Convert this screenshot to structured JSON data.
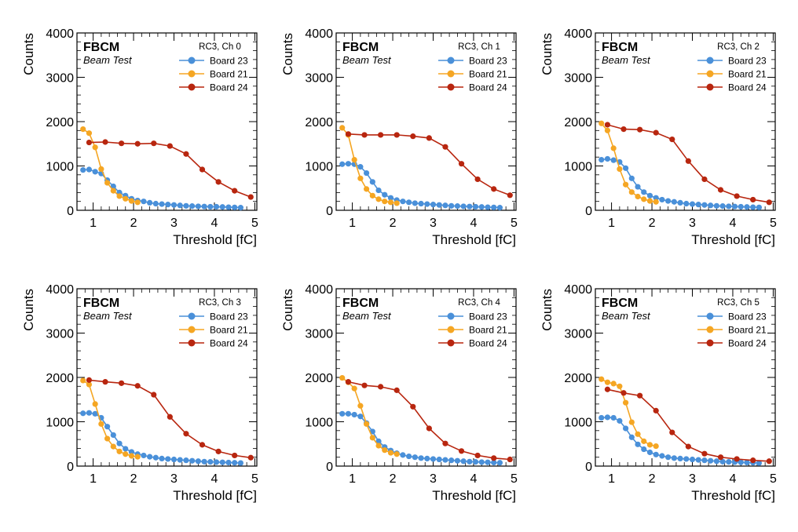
{
  "figure": {
    "brand": "FBCM",
    "subtitle": "Beam Test"
  },
  "colors": {
    "Board 23": "#4a90d9",
    "Board 21": "#f5a623",
    "Board 24": "#b8260f"
  },
  "chart_data": [
    {
      "type": "line",
      "channel_label": "RC3, Ch 0",
      "xlabel": "Threshold [fC]",
      "ylabel": "Counts",
      "xlim": [
        0.6,
        5.05
      ],
      "ylim": [
        0,
        4000
      ],
      "xticks": [
        1,
        2,
        3,
        4,
        5
      ],
      "yticks": [
        0,
        1000,
        2000,
        3000,
        4000
      ],
      "legend_position": "top-right",
      "series": [
        {
          "name": "Board 23",
          "x": [
            0.75,
            0.9,
            1.05,
            1.2,
            1.35,
            1.5,
            1.65,
            1.8,
            1.95,
            2.1,
            2.25,
            2.4,
            2.55,
            2.7,
            2.85,
            3.0,
            3.15,
            3.3,
            3.45,
            3.6,
            3.75,
            3.9,
            4.05,
            4.2,
            4.35,
            4.5,
            4.65
          ],
          "y": [
            910,
            920,
            870,
            830,
            680,
            540,
            400,
            330,
            260,
            220,
            200,
            170,
            150,
            140,
            130,
            120,
            110,
            100,
            95,
            90,
            85,
            80,
            80,
            75,
            70,
            65,
            60
          ]
        },
        {
          "name": "Board 21",
          "x": [
            0.75,
            0.9,
            1.05,
            1.2,
            1.35,
            1.5,
            1.65,
            1.8,
            1.95,
            2.1
          ],
          "y": [
            1830,
            1740,
            1420,
            930,
            620,
            440,
            320,
            260,
            210,
            180
          ]
        },
        {
          "name": "Board 24",
          "x": [
            0.9,
            1.3,
            1.7,
            2.1,
            2.5,
            2.9,
            3.3,
            3.7,
            4.1,
            4.5,
            4.9
          ],
          "y": [
            1530,
            1540,
            1510,
            1500,
            1510,
            1450,
            1270,
            920,
            640,
            440,
            300
          ]
        }
      ]
    },
    {
      "type": "line",
      "channel_label": "RC3, Ch 1",
      "xlabel": "Threshold [fC]",
      "ylabel": "Counts",
      "xlim": [
        0.6,
        5.05
      ],
      "ylim": [
        0,
        4000
      ],
      "xticks": [
        1,
        2,
        3,
        4,
        5
      ],
      "yticks": [
        0,
        1000,
        2000,
        3000,
        4000
      ],
      "legend_position": "top-right",
      "series": [
        {
          "name": "Board 23",
          "x": [
            0.75,
            0.9,
            1.05,
            1.2,
            1.35,
            1.5,
            1.65,
            1.8,
            1.95,
            2.1,
            2.25,
            2.4,
            2.55,
            2.7,
            2.85,
            3.0,
            3.15,
            3.3,
            3.45,
            3.6,
            3.75,
            3.9,
            4.05,
            4.2,
            4.35,
            4.5,
            4.65
          ],
          "y": [
            1040,
            1050,
            1040,
            980,
            840,
            640,
            450,
            350,
            280,
            230,
            200,
            180,
            160,
            150,
            140,
            130,
            120,
            110,
            100,
            95,
            90,
            85,
            80,
            75,
            70,
            65,
            60
          ]
        },
        {
          "name": "Board 21",
          "x": [
            0.75,
            0.9,
            1.05,
            1.2,
            1.35,
            1.5,
            1.65,
            1.8,
            1.95,
            2.1
          ],
          "y": [
            1860,
            1700,
            1140,
            720,
            480,
            330,
            250,
            200,
            180,
            160
          ]
        },
        {
          "name": "Board 24",
          "x": [
            0.9,
            1.3,
            1.7,
            2.1,
            2.5,
            2.9,
            3.3,
            3.7,
            4.1,
            4.5,
            4.9
          ],
          "y": [
            1720,
            1700,
            1700,
            1700,
            1670,
            1630,
            1430,
            1050,
            700,
            480,
            340
          ]
        }
      ]
    },
    {
      "type": "line",
      "channel_label": "RC3, Ch 2",
      "xlabel": "Threshold [fC]",
      "ylabel": "Counts",
      "xlim": [
        0.6,
        5.05
      ],
      "ylim": [
        0,
        4000
      ],
      "xticks": [
        1,
        2,
        3,
        4,
        5
      ],
      "yticks": [
        0,
        1000,
        2000,
        3000,
        4000
      ],
      "legend_position": "top-right",
      "series": [
        {
          "name": "Board 23",
          "x": [
            0.75,
            0.9,
            1.05,
            1.2,
            1.35,
            1.5,
            1.65,
            1.8,
            1.95,
            2.1,
            2.25,
            2.4,
            2.55,
            2.7,
            2.85,
            3.0,
            3.15,
            3.3,
            3.45,
            3.6,
            3.75,
            3.9,
            4.05,
            4.2,
            4.35,
            4.5,
            4.65
          ],
          "y": [
            1140,
            1160,
            1130,
            1090,
            950,
            720,
            530,
            410,
            330,
            280,
            240,
            210,
            190,
            170,
            150,
            140,
            130,
            120,
            110,
            100,
            95,
            90,
            85,
            80,
            75,
            70,
            65
          ]
        },
        {
          "name": "Board 21",
          "x": [
            0.75,
            0.9,
            1.05,
            1.2,
            1.35,
            1.5,
            1.65,
            1.8,
            1.95,
            2.1
          ],
          "y": [
            1960,
            1800,
            1400,
            930,
            580,
            410,
            310,
            250,
            210,
            190
          ]
        },
        {
          "name": "Board 24",
          "x": [
            0.9,
            1.3,
            1.7,
            2.1,
            2.5,
            2.9,
            3.3,
            3.7,
            4.1,
            4.5,
            4.9
          ],
          "y": [
            1930,
            1830,
            1820,
            1750,
            1600,
            1110,
            700,
            460,
            320,
            240,
            180
          ]
        }
      ]
    },
    {
      "type": "line",
      "channel_label": "RC3, Ch 3",
      "xlabel": "Threshold [fC]",
      "ylabel": "Counts",
      "xlim": [
        0.6,
        5.05
      ],
      "ylim": [
        0,
        4000
      ],
      "xticks": [
        1,
        2,
        3,
        4,
        5
      ],
      "yticks": [
        0,
        1000,
        2000,
        3000,
        4000
      ],
      "legend_position": "top-right",
      "series": [
        {
          "name": "Board 23",
          "x": [
            0.75,
            0.9,
            1.05,
            1.2,
            1.35,
            1.5,
            1.65,
            1.8,
            1.95,
            2.1,
            2.25,
            2.4,
            2.55,
            2.7,
            2.85,
            3.0,
            3.15,
            3.3,
            3.45,
            3.6,
            3.75,
            3.9,
            4.05,
            4.2,
            4.35,
            4.5,
            4.65
          ],
          "y": [
            1190,
            1200,
            1180,
            1090,
            890,
            700,
            510,
            390,
            320,
            270,
            240,
            210,
            190,
            170,
            160,
            150,
            140,
            130,
            120,
            110,
            100,
            95,
            90,
            85,
            80,
            75,
            70
          ]
        },
        {
          "name": "Board 21",
          "x": [
            0.75,
            0.9,
            1.05,
            1.2,
            1.35,
            1.5,
            1.65,
            1.8,
            1.95,
            2.1
          ],
          "y": [
            1930,
            1840,
            1400,
            950,
            620,
            440,
            330,
            270,
            230,
            210
          ]
        },
        {
          "name": "Board 24",
          "x": [
            0.9,
            1.3,
            1.7,
            2.1,
            2.5,
            2.9,
            3.3,
            3.7,
            4.1,
            4.5,
            4.9
          ],
          "y": [
            1940,
            1900,
            1870,
            1810,
            1610,
            1110,
            730,
            480,
            330,
            240,
            190
          ]
        }
      ]
    },
    {
      "type": "line",
      "channel_label": "RC3, Ch 4",
      "xlabel": "Threshold [fC]",
      "ylabel": "Counts",
      "xlim": [
        0.6,
        5.05
      ],
      "ylim": [
        0,
        4000
      ],
      "xticks": [
        1,
        2,
        3,
        4,
        5
      ],
      "yticks": [
        0,
        1000,
        2000,
        3000,
        4000
      ],
      "legend_position": "top-right",
      "series": [
        {
          "name": "Board 23",
          "x": [
            0.75,
            0.9,
            1.05,
            1.2,
            1.35,
            1.5,
            1.65,
            1.8,
            1.95,
            2.1,
            2.25,
            2.4,
            2.55,
            2.7,
            2.85,
            3.0,
            3.15,
            3.3,
            3.45,
            3.6,
            3.75,
            3.9,
            4.05,
            4.2,
            4.35,
            4.5,
            4.65
          ],
          "y": [
            1180,
            1180,
            1160,
            1120,
            970,
            780,
            560,
            430,
            350,
            290,
            250,
            220,
            200,
            180,
            170,
            160,
            150,
            140,
            130,
            120,
            110,
            100,
            95,
            90,
            85,
            80,
            75
          ]
        },
        {
          "name": "Board 21",
          "x": [
            0.75,
            0.9,
            1.05,
            1.2,
            1.35,
            1.5,
            1.65,
            1.8,
            1.95,
            2.1
          ],
          "y": [
            1990,
            1890,
            1750,
            1360,
            950,
            640,
            460,
            360,
            300,
            270
          ]
        },
        {
          "name": "Board 24",
          "x": [
            0.9,
            1.3,
            1.7,
            2.1,
            2.5,
            2.9,
            3.3,
            3.7,
            4.1,
            4.5,
            4.9
          ],
          "y": [
            1900,
            1820,
            1790,
            1710,
            1340,
            850,
            510,
            340,
            240,
            180,
            150
          ]
        }
      ]
    },
    {
      "type": "line",
      "channel_label": "RC3, Ch 5",
      "xlabel": "Threshold [fC]",
      "ylabel": "Counts",
      "xlim": [
        0.6,
        5.05
      ],
      "ylim": [
        0,
        4000
      ],
      "xticks": [
        1,
        2,
        3,
        4,
        5
      ],
      "yticks": [
        0,
        1000,
        2000,
        3000,
        4000
      ],
      "legend_position": "top-right",
      "series": [
        {
          "name": "Board 23",
          "x": [
            0.75,
            0.9,
            1.05,
            1.2,
            1.35,
            1.5,
            1.65,
            1.8,
            1.95,
            2.1,
            2.25,
            2.4,
            2.55,
            2.7,
            2.85,
            3.0,
            3.15,
            3.3,
            3.45,
            3.6,
            3.75,
            3.9,
            4.05,
            4.2,
            4.35,
            4.5,
            4.65
          ],
          "y": [
            1090,
            1100,
            1090,
            1020,
            850,
            650,
            490,
            380,
            310,
            260,
            230,
            200,
            180,
            170,
            160,
            150,
            140,
            130,
            120,
            110,
            100,
            95,
            90,
            85,
            80,
            75,
            70
          ]
        },
        {
          "name": "Board 21",
          "x": [
            0.75,
            0.9,
            1.05,
            1.2,
            1.35,
            1.5,
            1.65,
            1.8,
            1.95,
            2.1
          ],
          "y": [
            1960,
            1890,
            1860,
            1800,
            1430,
            990,
            720,
            560,
            480,
            450
          ]
        },
        {
          "name": "Board 24",
          "x": [
            0.9,
            1.3,
            1.7,
            2.1,
            2.5,
            2.9,
            3.3,
            3.7,
            4.1,
            4.5,
            4.9
          ],
          "y": [
            1730,
            1650,
            1590,
            1250,
            760,
            440,
            280,
            200,
            160,
            130,
            110
          ]
        }
      ]
    }
  ]
}
